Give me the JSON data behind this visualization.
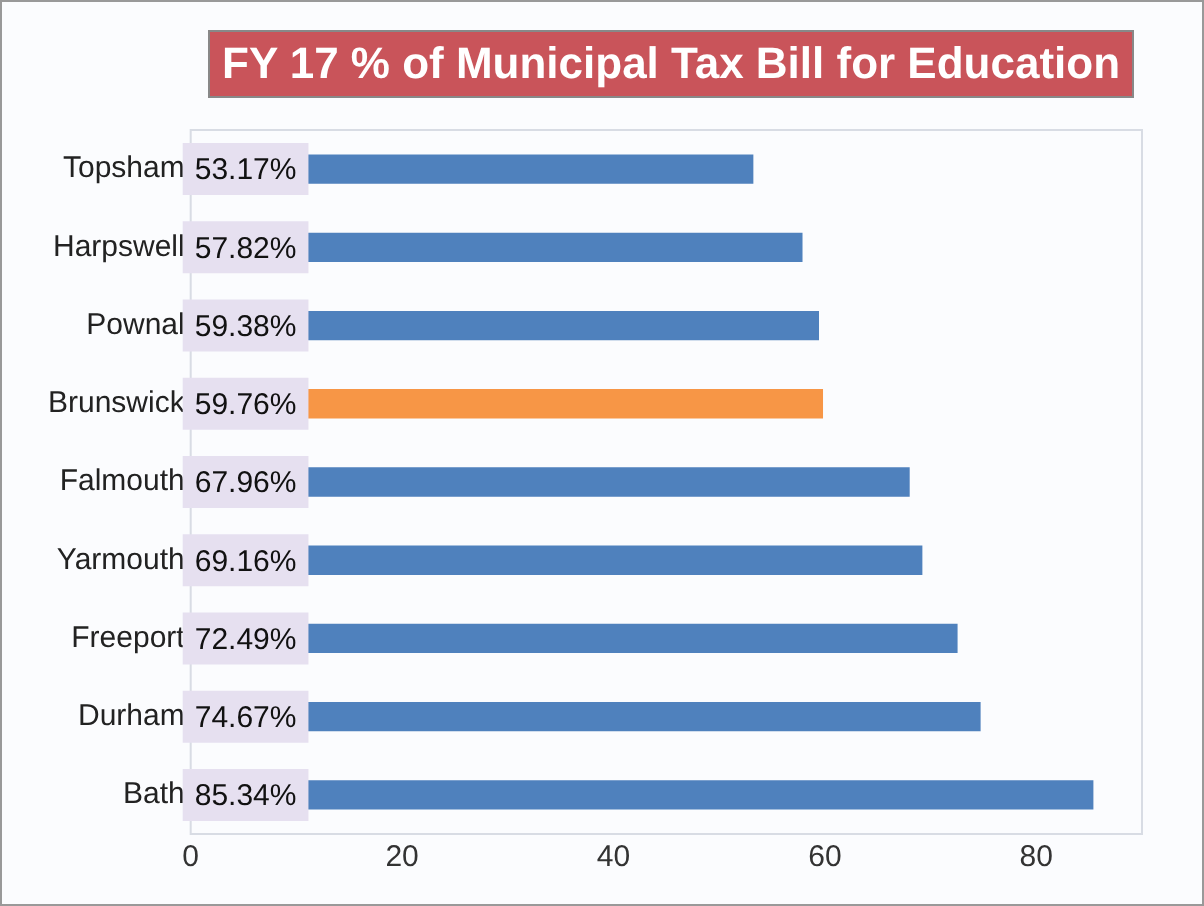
{
  "chart_data": {
    "type": "bar",
    "orientation": "horizontal",
    "title": "FY 17 % of Municipal Tax Bill for Education",
    "categories": [
      "Topsham",
      "Harpswell",
      "Pownal",
      "Brunswick",
      "Falmouth",
      "Yarmouth",
      "Freeport",
      "Durham",
      "Bath"
    ],
    "values": [
      53.17,
      57.82,
      59.38,
      59.76,
      67.96,
      69.16,
      72.49,
      74.67,
      85.34
    ],
    "colors": [
      "#4f81bd",
      "#4f81bd",
      "#4f81bd",
      "#f79646",
      "#4f81bd",
      "#4f81bd",
      "#4f81bd",
      "#4f81bd",
      "#4f81bd"
    ],
    "value_labels": [
      "53.17%",
      "57.82%",
      "59.38%",
      "59.76%",
      "67.96%",
      "69.16%",
      "72.49%",
      "74.67%",
      "85.34%"
    ],
    "xlim": [
      0,
      90
    ],
    "xticks": [
      0,
      20,
      40,
      60,
      80
    ],
    "grid": false,
    "legend": false
  }
}
